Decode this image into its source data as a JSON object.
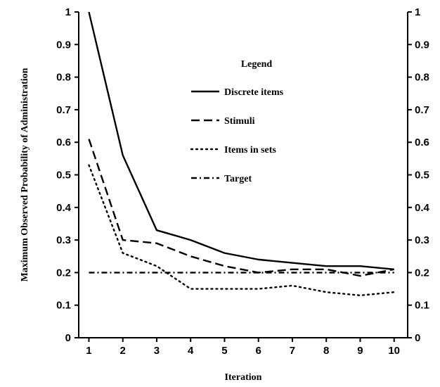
{
  "chart_data": {
    "type": "line",
    "title": "",
    "xlabel": "Iteration",
    "ylabel": "Maximum Observed Probability of Administration",
    "x": [
      1,
      2,
      3,
      4,
      5,
      6,
      7,
      8,
      9,
      10
    ],
    "xlim": [
      0.7,
      10.4
    ],
    "ylim": [
      0,
      1
    ],
    "x_ticks": [
      "1",
      "2",
      "3",
      "4",
      "5",
      "6",
      "7",
      "8",
      "9",
      "10"
    ],
    "y_ticks": [
      "0",
      "0.1",
      "0.2",
      "0.3",
      "0.4",
      "0.5",
      "0.6",
      "0.7",
      "0.8",
      "0.9",
      "1"
    ],
    "right_axis_mirror": true,
    "grid": false,
    "legend_title": "Legend",
    "legend_position": "center-right",
    "series": [
      {
        "name": "Discrete items",
        "style": "solid",
        "values": [
          1.0,
          0.56,
          0.33,
          0.3,
          0.26,
          0.24,
          0.23,
          0.22,
          0.22,
          0.21
        ]
      },
      {
        "name": "Stimuli",
        "style": "dashed",
        "values": [
          0.61,
          0.3,
          0.29,
          0.25,
          0.22,
          0.2,
          0.21,
          0.21,
          0.19,
          0.21
        ]
      },
      {
        "name": "Items in sets",
        "style": "dotted",
        "values": [
          0.53,
          0.26,
          0.22,
          0.15,
          0.15,
          0.15,
          0.16,
          0.14,
          0.13,
          0.14
        ]
      },
      {
        "name": "Target",
        "style": "dash-dot",
        "values": [
          0.2,
          0.2,
          0.2,
          0.2,
          0.2,
          0.2,
          0.2,
          0.2,
          0.2,
          0.2
        ]
      }
    ],
    "colors": {
      "line": "#000000",
      "background": "#ffffff"
    }
  }
}
